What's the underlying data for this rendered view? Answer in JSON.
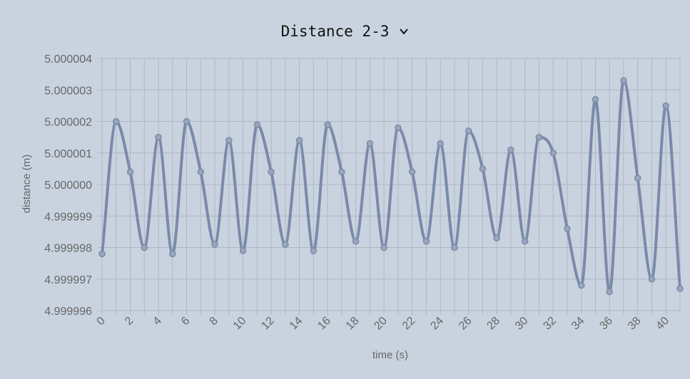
{
  "header": {
    "series_selector": "Distance 2-3",
    "chevron_icon": "chevron-down-icon"
  },
  "colors": {
    "background": "#c9d3e0",
    "grid": "#aeb7c4",
    "line": "#7a8aa8",
    "point_fill": "#9aa6bd",
    "tick_text": "#666666"
  },
  "chart_data": {
    "type": "line",
    "xlabel": "time (s)",
    "ylabel": "distance (m)",
    "xlim": [
      0,
      41
    ],
    "ylim": [
      4.999996,
      5.000004
    ],
    "x_ticks": [
      0,
      2,
      4,
      6,
      8,
      10,
      12,
      14,
      16,
      18,
      20,
      22,
      24,
      26,
      28,
      30,
      32,
      34,
      36,
      38,
      40
    ],
    "y_ticks": [
      "4.999996",
      "4.999997",
      "4.999998",
      "4.999999",
      "5.000000",
      "5.000001",
      "5.000002",
      "5.000003",
      "5.000004"
    ],
    "grid": true,
    "legend": "none",
    "series": [
      {
        "x": [
          0,
          1,
          2,
          3,
          4,
          5,
          6,
          7,
          8,
          9,
          10,
          11,
          12,
          13,
          14,
          15,
          16,
          17,
          18,
          19,
          20,
          21,
          22,
          23,
          24,
          25,
          26,
          27,
          28,
          29,
          30,
          31,
          32,
          33,
          34,
          35,
          36,
          37,
          38,
          39,
          40,
          41
        ],
        "values": [
          4.9999978,
          5.000002,
          5.0000004,
          4.999998,
          5.0000015,
          4.9999978,
          5.000002,
          5.0000004,
          4.9999981,
          5.0000014,
          4.9999979,
          5.0000019,
          5.0000004,
          4.9999981,
          5.0000014,
          4.9999979,
          5.0000019,
          5.0000004,
          4.9999982,
          5.0000013,
          4.999998,
          5.0000018,
          5.0000004,
          4.9999982,
          5.0000013,
          4.999998,
          5.0000017,
          5.0000005,
          4.9999983,
          5.0000011,
          4.9999982,
          5.0000015,
          5.000001,
          4.9999986,
          4.9999968,
          5.0000027,
          4.9999966,
          5.0000033,
          5.0000002,
          4.999997,
          5.0000025,
          4.9999967
        ]
      }
    ]
  }
}
